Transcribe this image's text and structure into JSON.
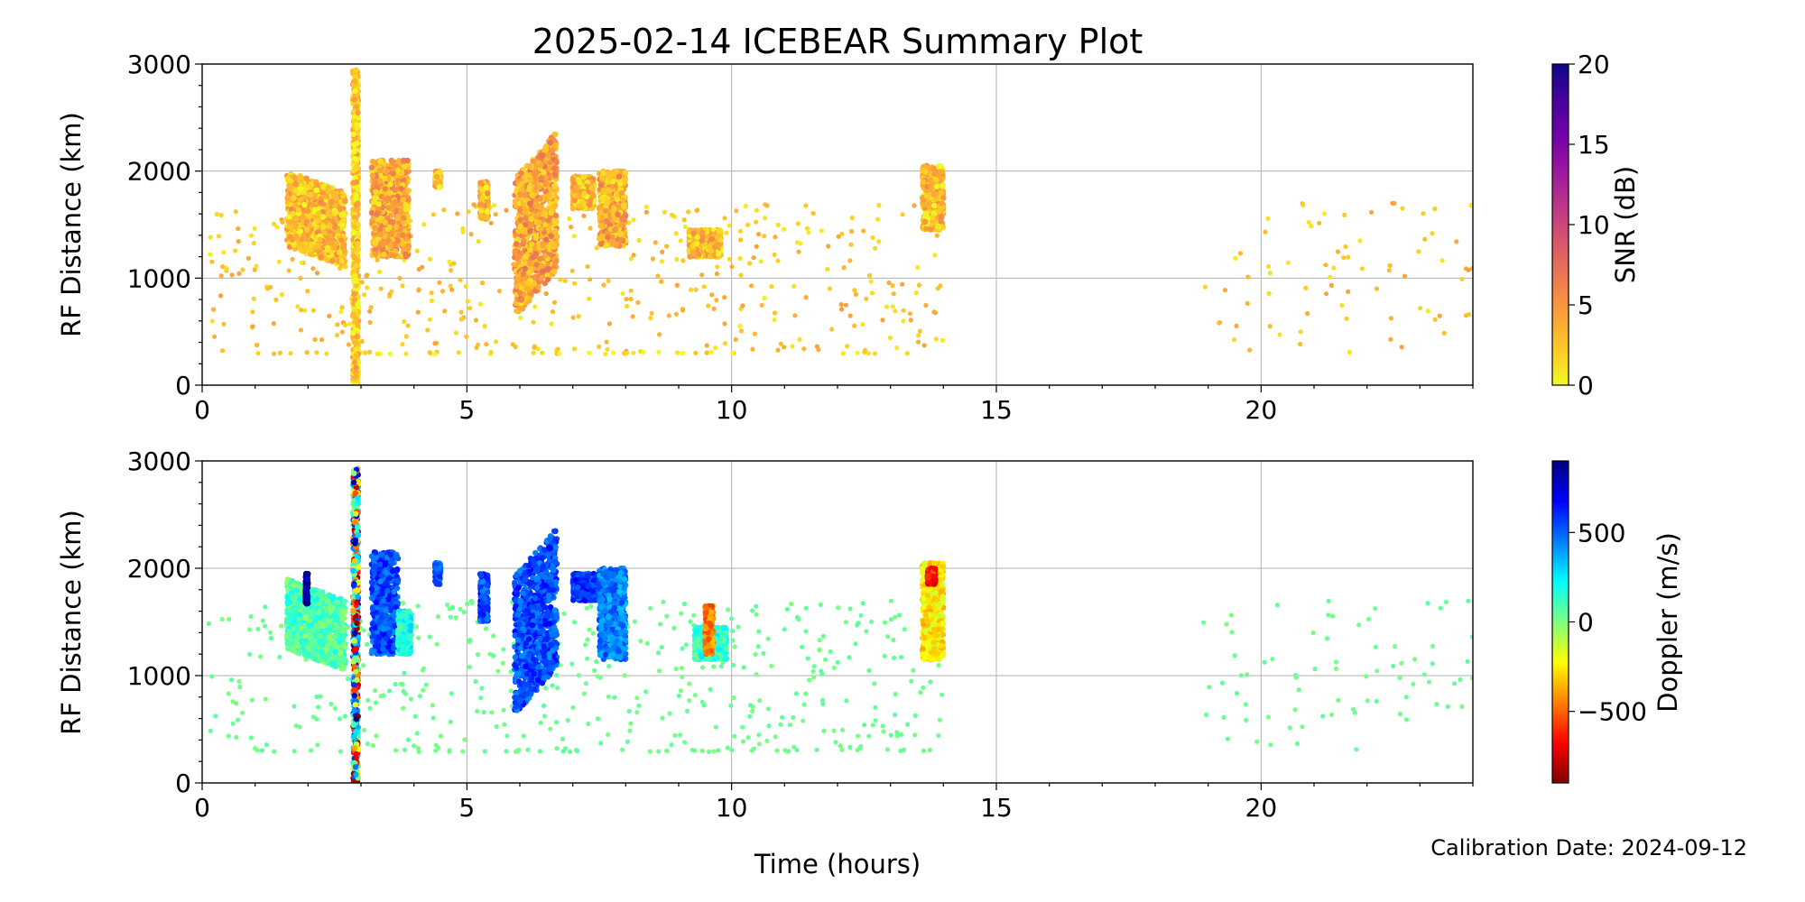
{
  "figure": {
    "title": "2025-02-14 ICEBEAR Summary Plot",
    "xlabel": "Time (hours)",
    "calibration": "Calibration Date: 2024-09-12"
  },
  "chart_data": [
    {
      "type": "scatter",
      "panel": "top",
      "xlabel": "Time (hours)",
      "ylabel": "RF Distance (km)",
      "xlim": [
        0,
        24
      ],
      "ylim": [
        0,
        3000
      ],
      "xticks": [
        0,
        5,
        10,
        15,
        20
      ],
      "yticks": [
        0,
        1000,
        2000,
        3000
      ],
      "grid": true,
      "colorbar": {
        "label": "SNR (dB)",
        "min": 0,
        "max": 20,
        "ticks": [
          0,
          5,
          10,
          15,
          20
        ],
        "colormap": "plasma_r",
        "stops": [
          "#f0f921",
          "#fdca26",
          "#fb9f3a",
          "#ed7953",
          "#d8576b",
          "#bd3786",
          "#9c179e",
          "#7201a8",
          "#46039f",
          "#0d0887"
        ]
      },
      "clusters": [
        {
          "t": [
            1.6,
            2.7
          ],
          "r": [
            1200,
            1900
          ],
          "value": 1.5,
          "slope": -400
        },
        {
          "t": [
            2.85,
            2.95
          ],
          "r": [
            0,
            2950
          ],
          "value": 1.0,
          "slope": 0
        },
        {
          "t": [
            3.2,
            3.9
          ],
          "r": [
            1200,
            2100
          ],
          "value": 2.5,
          "slope": 0
        },
        {
          "t": [
            4.4,
            4.5
          ],
          "r": [
            1850,
            2000
          ],
          "value": 1.5,
          "slope": 0
        },
        {
          "t": [
            5.25,
            5.4
          ],
          "r": [
            1550,
            1900
          ],
          "value": 1.5,
          "slope": 0
        },
        {
          "t": [
            5.9,
            6.7
          ],
          "r": [
            850,
            2150
          ],
          "value": 3.0,
          "slope": 900
        },
        {
          "t": [
            7.0,
            7.4
          ],
          "r": [
            1650,
            1950
          ],
          "value": 1.5,
          "slope": 0
        },
        {
          "t": [
            7.5,
            8.0
          ],
          "r": [
            1300,
            2000
          ],
          "value": 2.5,
          "slope": 0
        },
        {
          "t": [
            9.2,
            9.8
          ],
          "r": [
            1200,
            1450
          ],
          "value": 1.5,
          "slope": 0
        },
        {
          "t": [
            13.6,
            14.0
          ],
          "r": [
            1450,
            2050
          ],
          "value": 1.5,
          "slope": 0
        }
      ],
      "scatter_regions": [
        {
          "t": [
            0.1,
            14.0
          ],
          "r": [
            300,
            1700
          ],
          "value": 2.5,
          "n": 420
        },
        {
          "t": [
            0.1,
            13.8
          ],
          "r": [
            290,
            310
          ],
          "value": 1.0,
          "n": 45
        },
        {
          "t": [
            18.9,
            24.0
          ],
          "r": [
            300,
            1700
          ],
          "value": 2.5,
          "n": 75
        }
      ]
    },
    {
      "type": "scatter",
      "panel": "bottom",
      "xlabel": "Time (hours)",
      "ylabel": "RF Distance (km)",
      "xlim": [
        0,
        24
      ],
      "ylim": [
        0,
        3000
      ],
      "xticks": [
        0,
        5,
        10,
        15,
        20
      ],
      "yticks": [
        0,
        1000,
        2000,
        3000
      ],
      "grid": true,
      "colorbar": {
        "label": "Doppler (m/s)",
        "min": -900,
        "max": 900,
        "ticks": [
          -500,
          0,
          500
        ],
        "tick_labels": [
          "−500",
          "0",
          "500"
        ],
        "colormap": "jet_r",
        "stops": [
          "#7f0000",
          "#ff0000",
          "#ff7f00",
          "#ffff00",
          "#7fff7f",
          "#00ffff",
          "#007fff",
          "#0000ff",
          "#00007f"
        ]
      },
      "clusters": [
        {
          "t": [
            1.6,
            2.7
          ],
          "r": [
            1150,
            1800
          ],
          "value": 80,
          "slope": -400
        },
        {
          "t": [
            1.95,
            2.0
          ],
          "r": [
            1650,
            1950
          ],
          "value": 850,
          "slope": 0
        },
        {
          "t": [
            2.85,
            2.95
          ],
          "r": [
            0,
            2950
          ],
          "value": -400,
          "slope": 0,
          "mixed": true
        },
        {
          "t": [
            3.2,
            3.7
          ],
          "r": [
            1200,
            2150
          ],
          "value": 550,
          "slope": 0
        },
        {
          "t": [
            3.7,
            3.95
          ],
          "r": [
            1200,
            1600
          ],
          "value": 180,
          "slope": 0
        },
        {
          "t": [
            4.4,
            4.5
          ],
          "r": [
            1850,
            2050
          ],
          "value": 550,
          "slope": 0
        },
        {
          "t": [
            5.25,
            5.4
          ],
          "r": [
            1500,
            1950
          ],
          "value": 550,
          "slope": 0
        },
        {
          "t": [
            5.9,
            6.7
          ],
          "r": [
            850,
            2150
          ],
          "value": 550,
          "slope": 900
        },
        {
          "t": [
            7.0,
            7.5
          ],
          "r": [
            1700,
            1950
          ],
          "value": 600,
          "slope": 0
        },
        {
          "t": [
            7.5,
            8.0
          ],
          "r": [
            1150,
            2000
          ],
          "value": 450,
          "slope": 0
        },
        {
          "t": [
            9.3,
            9.9
          ],
          "r": [
            1150,
            1450
          ],
          "value": 150,
          "slope": 0
        },
        {
          "t": [
            9.5,
            9.65
          ],
          "r": [
            1200,
            1650
          ],
          "value": -450,
          "slope": 0
        },
        {
          "t": [
            13.6,
            14.0
          ],
          "r": [
            1150,
            2050
          ],
          "value": -250,
          "slope": 0
        },
        {
          "t": [
            13.7,
            13.85
          ],
          "r": [
            1850,
            2000
          ],
          "value": -650,
          "slope": 0
        }
      ],
      "scatter_regions": [
        {
          "t": [
            0.1,
            14.0
          ],
          "r": [
            300,
            1700
          ],
          "value": 30,
          "n": 420
        },
        {
          "t": [
            0.1,
            13.8
          ],
          "r": [
            290,
            310
          ],
          "value": 30,
          "n": 45
        },
        {
          "t": [
            18.9,
            24.0
          ],
          "r": [
            300,
            1700
          ],
          "value": 30,
          "n": 75
        }
      ]
    }
  ]
}
